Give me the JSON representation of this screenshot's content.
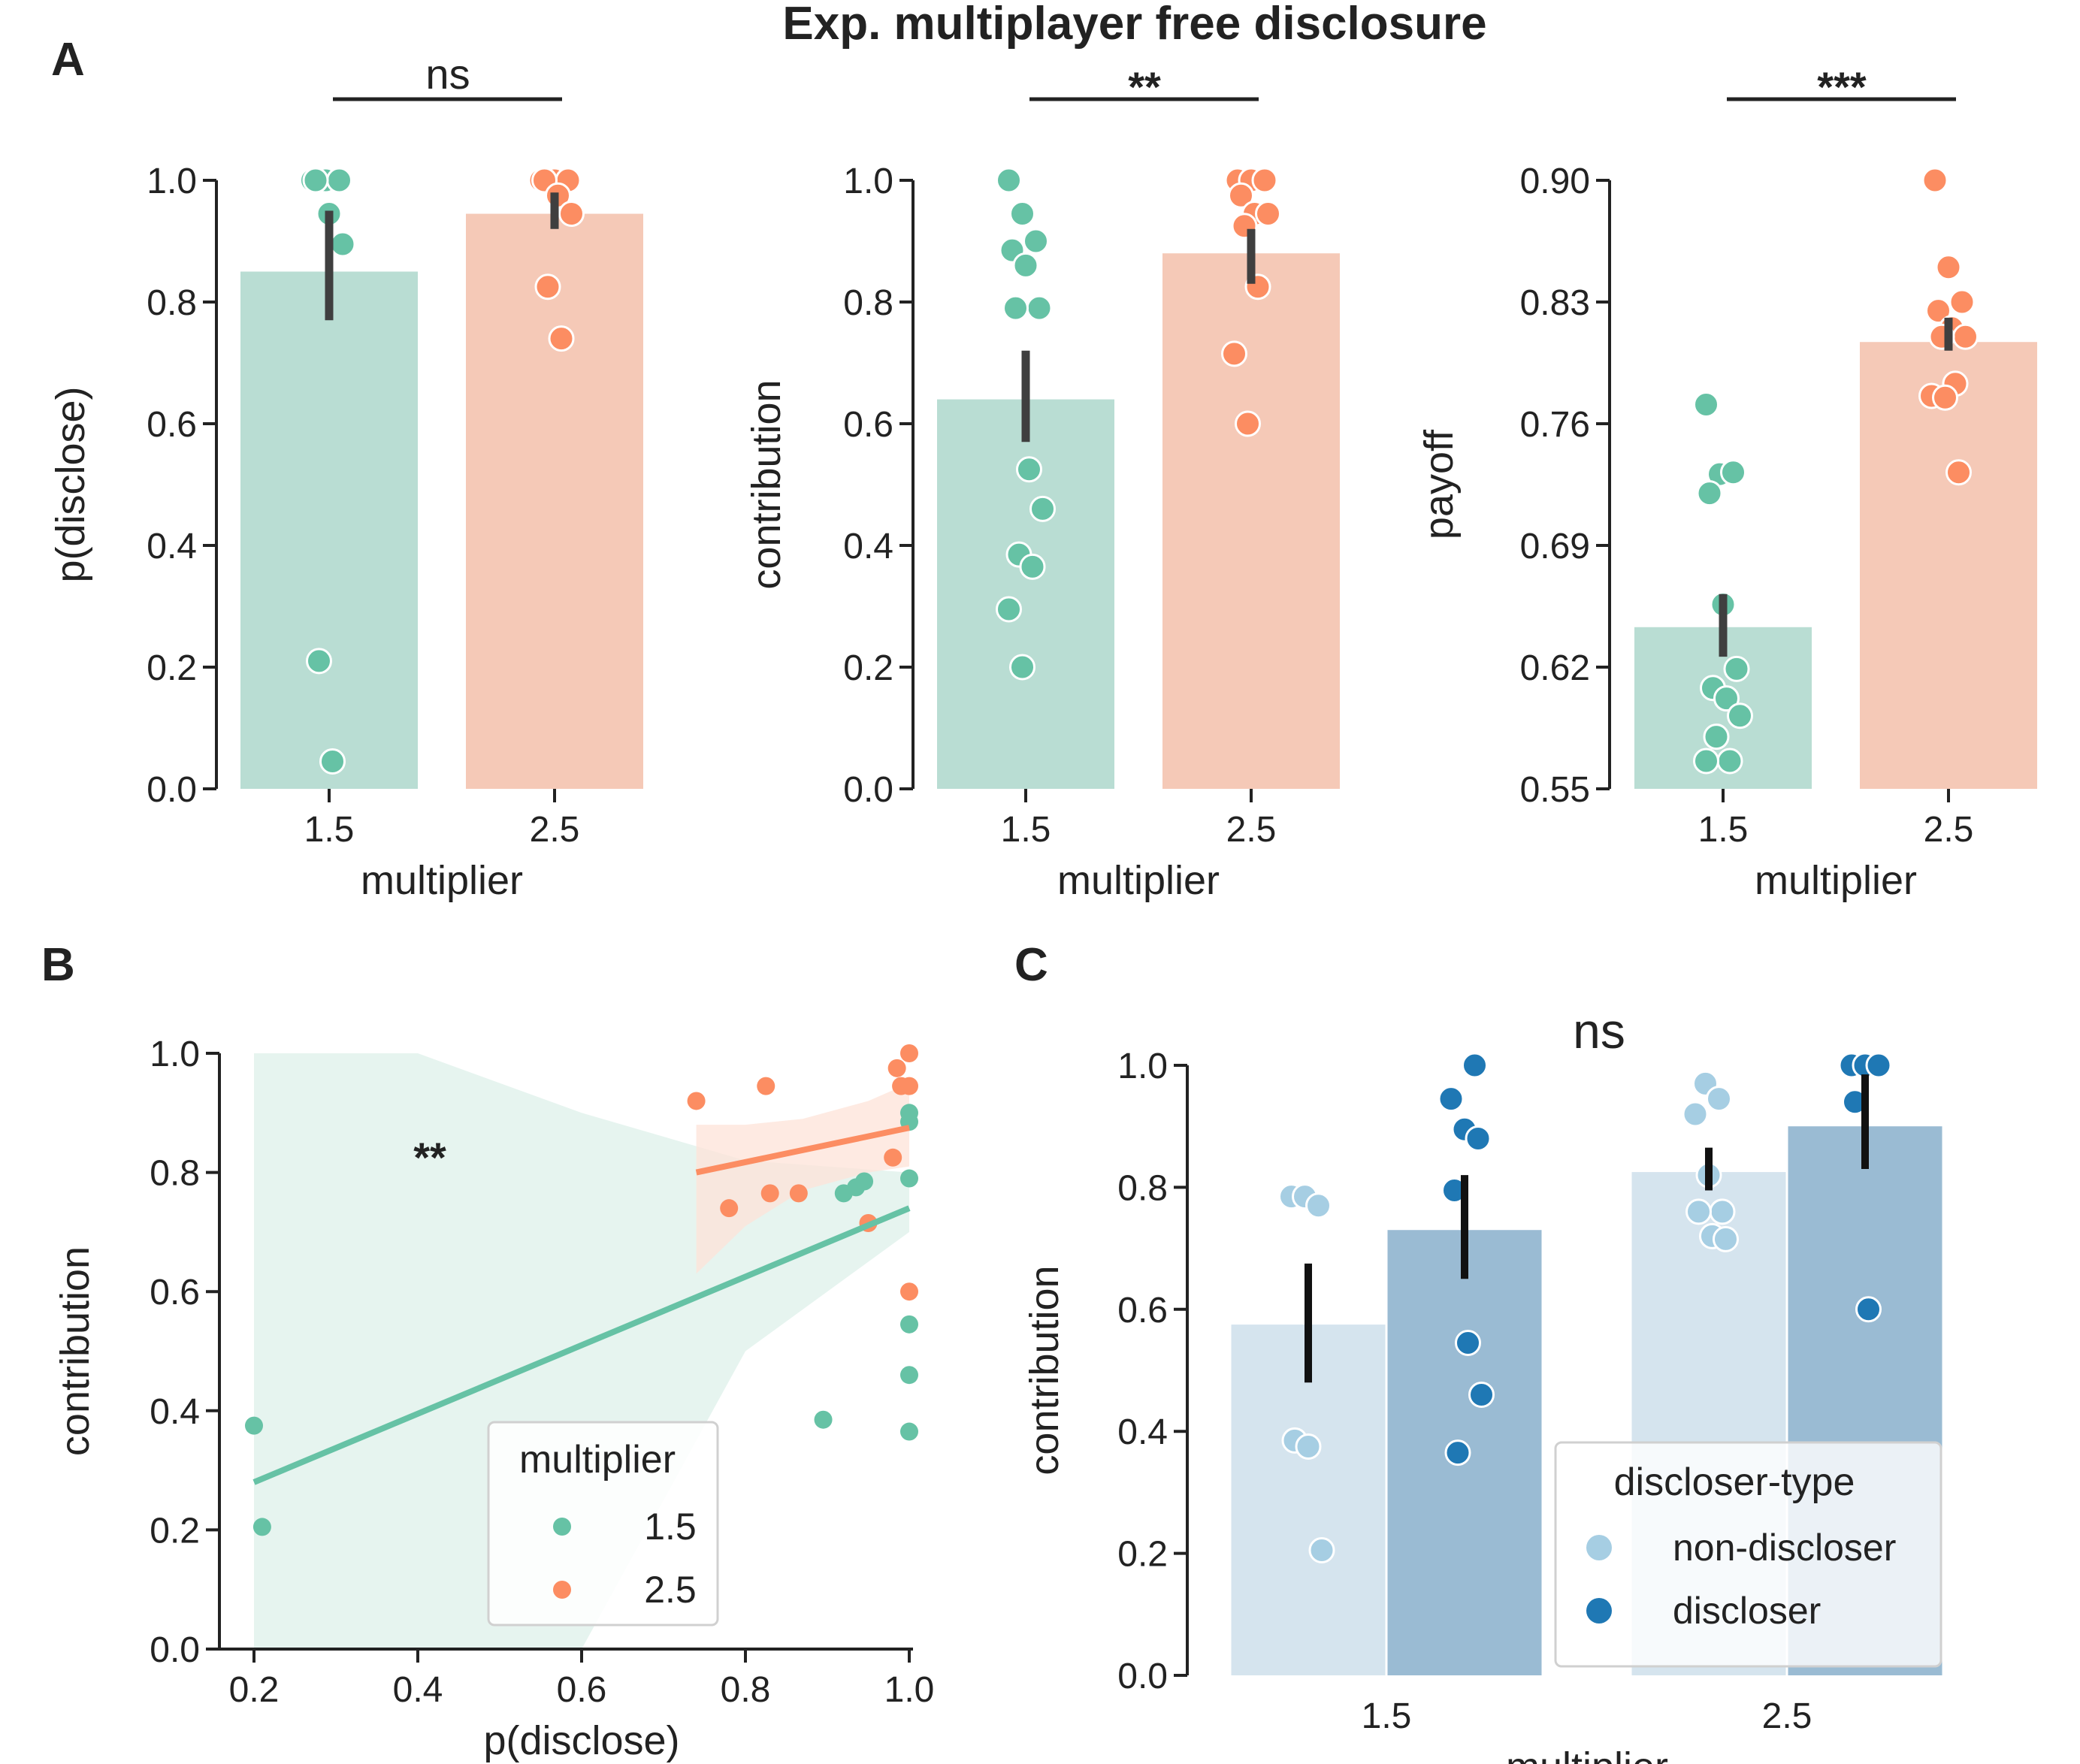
{
  "figure": {
    "title": "Exp. multiplayer free disclosure",
    "colors": {
      "m15": "#66c2a5",
      "m15_bar": "#b9ddd3",
      "m25": "#fc8d62",
      "m25_bar": "#f5c9b7",
      "nondiscloser": "#a6cee3",
      "nondiscloser_bar": "#d5e4ee",
      "discloser": "#1f78b4",
      "discloser_bar": "#9abbd3",
      "errorbar": "#3f3f3f",
      "axis": "#222222"
    }
  },
  "chart_data": [
    {
      "id": "A1",
      "panel_label": "A",
      "type": "bar",
      "xlabel": "multiplier",
      "ylabel": "p(disclose)",
      "categories": [
        "1.5",
        "2.5"
      ],
      "ylim": [
        0,
        1
      ],
      "yticks": [
        "0.0",
        "0.2",
        "0.4",
        "0.6",
        "0.8",
        "1.0"
      ],
      "significance": "ns",
      "values": [
        0.85,
        0.945
      ],
      "ci": [
        [
          0.77,
          0.95
        ],
        [
          0.92,
          0.98
        ]
      ],
      "points": [
        [
          1.0,
          1.0,
          1.0,
          1.0,
          0.945,
          0.895,
          0.21,
          0.045
        ],
        [
          1.0,
          1.0,
          1.0,
          1.0,
          0.975,
          0.945,
          0.825,
          0.74
        ]
      ]
    },
    {
      "id": "A2",
      "type": "bar",
      "xlabel": "multiplier",
      "ylabel": "contribution",
      "categories": [
        "1.5",
        "2.5"
      ],
      "ylim": [
        0,
        1
      ],
      "yticks": [
        "0.0",
        "0.2",
        "0.4",
        "0.6",
        "0.8",
        "1.0"
      ],
      "significance": "**",
      "values": [
        0.64,
        0.88
      ],
      "ci": [
        [
          0.57,
          0.72
        ],
        [
          0.83,
          0.92
        ]
      ],
      "points": [
        [
          1.0,
          0.945,
          0.9,
          0.885,
          0.86,
          0.79,
          0.79,
          0.525,
          0.46,
          0.385,
          0.365,
          0.295,
          0.2
        ],
        [
          1.0,
          1.0,
          1.0,
          0.975,
          0.945,
          0.945,
          0.925,
          0.825,
          0.715,
          0.6
        ]
      ]
    },
    {
      "id": "A3",
      "type": "bar",
      "xlabel": "multiplier",
      "ylabel": "payoff",
      "categories": [
        "1.5",
        "2.5"
      ],
      "ylim": [
        0.55,
        0.9
      ],
      "yticks": [
        "0.55",
        "0.62",
        "0.69",
        "0.76",
        "0.83",
        "0.90"
      ],
      "significance": "***",
      "values": [
        0.643,
        0.807
      ],
      "ci": [
        [
          0.626,
          0.662
        ],
        [
          0.802,
          0.821
        ]
      ],
      "points": [
        [
          0.771,
          0.731,
          0.732,
          0.72,
          0.656,
          0.619,
          0.608,
          0.602,
          0.592,
          0.58,
          0.566,
          0.566
        ],
        [
          0.9,
          0.85,
          0.83,
          0.825,
          0.815,
          0.81,
          0.81,
          0.783,
          0.776,
          0.775,
          0.732
        ]
      ]
    },
    {
      "id": "B",
      "panel_label": "B",
      "type": "scatter",
      "xlabel": "p(disclose)",
      "ylabel": "contribution",
      "xlim": [
        0.2,
        1.0
      ],
      "ylim": [
        0,
        1
      ],
      "xticks": [
        "0.2",
        "0.4",
        "0.6",
        "0.8",
        "1.0"
      ],
      "yticks": [
        "0.0",
        "0.2",
        "0.4",
        "0.6",
        "0.8",
        "1.0"
      ],
      "annotation": "**",
      "legend": {
        "title": "multiplier",
        "entries": [
          "1.5",
          "2.5"
        ],
        "placement": "lower-center"
      },
      "series": [
        {
          "name": "1.5",
          "points": [
            [
              0.2,
              0.375
            ],
            [
              0.21,
              0.205
            ],
            [
              0.895,
              0.385
            ],
            [
              0.92,
              0.765
            ],
            [
              0.935,
              0.775
            ],
            [
              0.945,
              0.785
            ],
            [
              1.0,
              0.9
            ],
            [
              1.0,
              0.885
            ],
            [
              1.0,
              0.79
            ],
            [
              1.0,
              0.545
            ],
            [
              1.0,
              0.46
            ],
            [
              1.0,
              0.365
            ]
          ],
          "fit": [
            [
              0.2,
              0.28
            ],
            [
              1.0,
              0.74
            ]
          ],
          "band_upper": [
            [
              0.2,
              1.0
            ],
            [
              0.4,
              1.0
            ],
            [
              0.6,
              0.9
            ],
            [
              0.8,
              0.82
            ],
            [
              1.0,
              0.8
            ]
          ],
          "band_lower": [
            [
              0.2,
              0.0
            ],
            [
              0.4,
              0.0
            ],
            [
              0.6,
              0.0
            ],
            [
              0.8,
              0.5
            ],
            [
              1.0,
              0.7
            ]
          ]
        },
        {
          "name": "2.5",
          "points": [
            [
              0.74,
              0.92
            ],
            [
              0.78,
              0.74
            ],
            [
              0.825,
              0.945
            ],
            [
              0.83,
              0.765
            ],
            [
              0.865,
              0.765
            ],
            [
              0.95,
              0.715
            ],
            [
              0.98,
              0.825
            ],
            [
              0.985,
              0.975
            ],
            [
              0.99,
              0.945
            ],
            [
              1.0,
              1.0
            ],
            [
              1.0,
              0.945
            ],
            [
              1.0,
              0.6
            ]
          ],
          "fit": [
            [
              0.74,
              0.8
            ],
            [
              1.0,
              0.875
            ]
          ],
          "band_upper": [
            [
              0.74,
              0.88
            ],
            [
              0.8,
              0.88
            ],
            [
              0.87,
              0.89
            ],
            [
              0.95,
              0.92
            ],
            [
              1.0,
              0.95
            ]
          ],
          "band_lower": [
            [
              0.74,
              0.63
            ],
            [
              0.8,
              0.71
            ],
            [
              0.87,
              0.77
            ],
            [
              0.95,
              0.8
            ],
            [
              1.0,
              0.81
            ]
          ]
        }
      ]
    },
    {
      "id": "C",
      "panel_label": "C",
      "type": "bar",
      "xlabel": "multiplier",
      "ylabel": "contribution",
      "categories": [
        "1.5",
        "2.5"
      ],
      "ylim": [
        0,
        1
      ],
      "yticks": [
        "0.0",
        "0.2",
        "0.4",
        "0.6",
        "0.8",
        "1.0"
      ],
      "significance": "ns",
      "legend": {
        "title": "discloser-type",
        "entries": [
          "non-discloser",
          "discloser"
        ],
        "placement": "lower-right"
      },
      "series": [
        {
          "name": "non-discloser",
          "values": [
            0.575,
            0.825
          ],
          "ci": [
            [
              0.48,
              0.675
            ],
            [
              0.795,
              0.865
            ]
          ],
          "points": [
            [
              0.785,
              0.785,
              0.77,
              0.385,
              0.375,
              0.205
            ],
            [
              0.97,
              0.945,
              0.92,
              0.82,
              0.76,
              0.76,
              0.72,
              0.715
            ]
          ]
        },
        {
          "name": "discloser",
          "values": [
            0.73,
            0.9
          ],
          "ci": [
            [
              0.65,
              0.82
            ],
            [
              0.83,
              0.985
            ]
          ],
          "points": [
            [
              1.0,
              0.945,
              0.895,
              0.88,
              0.795,
              0.545,
              0.46,
              0.365
            ],
            [
              1.0,
              1.0,
              1.0,
              0.94,
              0.6
            ]
          ]
        }
      ]
    }
  ]
}
